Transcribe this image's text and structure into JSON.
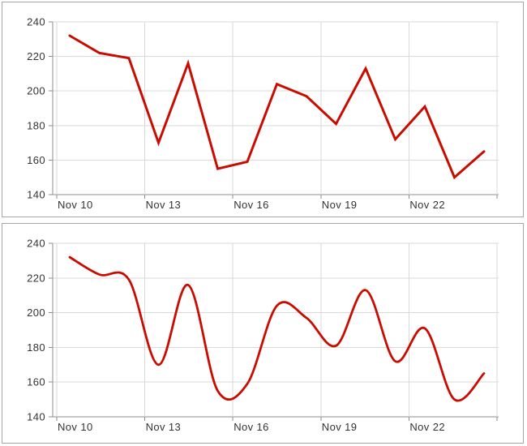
{
  "colors": {
    "series_red": "#c90c00",
    "gridline": "#d9d9d9",
    "axis": "#8e8e8e",
    "tick": "#8e8e8e",
    "label": "#333333",
    "panel_border": "#a6a6a6",
    "background": "#ffffff"
  },
  "chart_data": [
    {
      "type": "line",
      "curve": "linear",
      "title": "",
      "x_tick_labels": [
        "Nov 10",
        "Nov 13",
        "Nov 16",
        "Nov 19",
        "Nov 22"
      ],
      "points_per_tick": 3,
      "values": [
        232,
        222,
        219,
        170,
        216,
        155,
        159,
        204,
        197,
        181,
        213,
        172,
        191,
        150,
        165
      ],
      "ylim": [
        140,
        240
      ],
      "yticks": [
        240,
        220,
        200,
        180,
        160,
        140
      ],
      "grid": true,
      "legend": "none",
      "series_color": "#c90c00",
      "stroke_width": 3
    },
    {
      "type": "line",
      "curve": "smooth",
      "title": "",
      "x_tick_labels": [
        "Nov 10",
        "Nov 13",
        "Nov 16",
        "Nov 19",
        "Nov 22"
      ],
      "points_per_tick": 3,
      "values": [
        232,
        222,
        219,
        170,
        216,
        155,
        159,
        204,
        197,
        181,
        213,
        172,
        191,
        150,
        165
      ],
      "ylim": [
        140,
        240
      ],
      "yticks": [
        240,
        220,
        200,
        180,
        160,
        140
      ],
      "grid": true,
      "legend": "none",
      "series_color": "#c90c00",
      "stroke_width": 2.8
    }
  ]
}
